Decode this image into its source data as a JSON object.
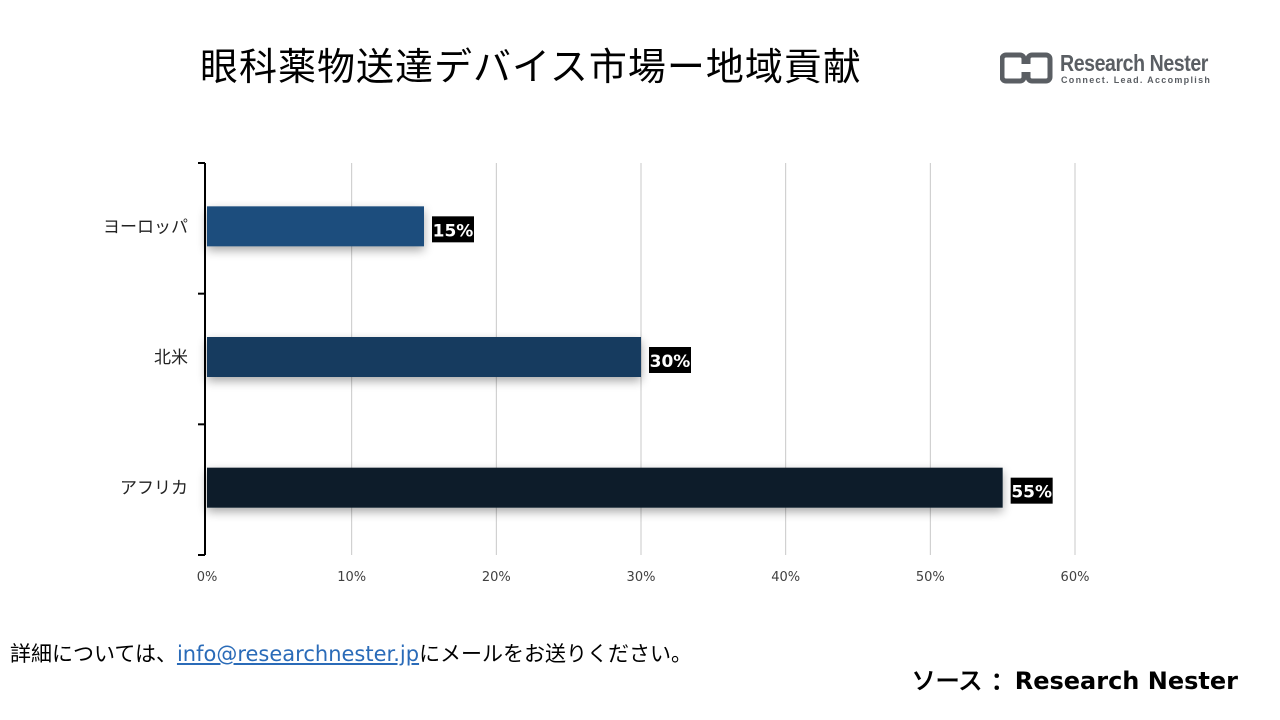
{
  "chart_data": {
    "type": "bar",
    "orientation": "horizontal",
    "title": "眼科薬物送達デバイス市場ー地域貢献",
    "categories": [
      "ヨーロッパ",
      "北米",
      "アフリカ"
    ],
    "values": [
      15,
      30,
      55
    ],
    "value_labels": [
      "15%",
      "30%",
      "55%"
    ],
    "bar_colors": [
      "#1f4e7d",
      "#173a5e",
      "#0e1b2b"
    ],
    "xlim": [
      0,
      60
    ],
    "x_ticks": [
      0,
      10,
      20,
      30,
      40,
      50,
      60
    ],
    "x_tick_labels": [
      "0%",
      "10%",
      "20%",
      "30%",
      "40%",
      "50%",
      "60%"
    ],
    "xlabel": "",
    "ylabel": "",
    "grid": true
  },
  "logo": {
    "name": "Research Nester",
    "tagline": "Connect. Lead. Accomplish"
  },
  "footer": {
    "note_before": "詳細については、",
    "email": "info@researchnester.jp",
    "note_after": "にメールをお送りください。",
    "source": "ソース ：Research Nester"
  }
}
